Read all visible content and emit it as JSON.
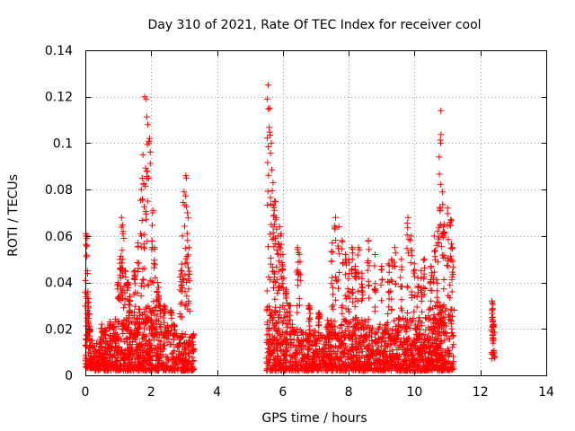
{
  "chart_data": {
    "type": "scatter",
    "title": "Day 310 of 2021, Rate Of TEC Index for receiver cool",
    "xlabel": "GPS time / hours",
    "ylabel": "ROTI / TECUs",
    "xlim": [
      0,
      14
    ],
    "ylim": [
      0,
      0.14
    ],
    "xticks": [
      0,
      2,
      4,
      6,
      8,
      10,
      12,
      14
    ],
    "yticks": [
      0,
      0.02,
      0.04,
      0.06,
      0.08,
      0.1,
      0.12,
      0.14
    ],
    "xtick_labels": [
      "0",
      "2",
      "4",
      "6",
      "8",
      "10",
      "12",
      "14"
    ],
    "ytick_labels": [
      "0",
      "0.02",
      "0.04",
      "0.06",
      "0.08",
      "0.1",
      "0.12",
      "0.14"
    ],
    "grid": true,
    "marker": "+",
    "color": "#ff0000",
    "series": [
      {
        "name": "ROTI",
        "clusters": [
          {
            "x_range": [
              0.0,
              0.25
            ],
            "y_base": [
              0.003,
              0.018
            ],
            "n": 70,
            "peaks": [
              [
                0.02,
                0.061
              ],
              [
                0.05,
                0.059
              ],
              [
                0.08,
                0.036
              ],
              [
                0.1,
                0.029
              ],
              [
                0.12,
                0.02
              ]
            ]
          },
          {
            "x_range": [
              0.25,
              0.9
            ],
            "y_base": [
              0.002,
              0.016
            ],
            "n": 150,
            "peaks": [
              [
                0.5,
                0.022
              ],
              [
                0.6,
                0.02
              ],
              [
                0.75,
                0.023
              ],
              [
                0.85,
                0.022
              ]
            ]
          },
          {
            "x_range": [
              0.9,
              1.4
            ],
            "y_base": [
              0.002,
              0.025
            ],
            "n": 160,
            "peaks": [
              [
                1.0,
                0.04
              ],
              [
                1.05,
                0.05
              ],
              [
                1.1,
                0.068
              ],
              [
                1.15,
                0.062
              ],
              [
                1.2,
                0.045
              ],
              [
                1.3,
                0.04
              ],
              [
                1.35,
                0.034
              ]
            ]
          },
          {
            "x_range": [
              1.4,
              2.3
            ],
            "y_base": [
              0.002,
              0.03
            ],
            "n": 300,
            "peaks": [
              [
                1.5,
                0.045
              ],
              [
                1.6,
                0.057
              ],
              [
                1.7,
                0.08
              ],
              [
                1.75,
                0.095
              ],
              [
                1.8,
                0.12
              ],
              [
                1.85,
                0.119
              ],
              [
                1.9,
                0.108
              ],
              [
                1.95,
                0.102
              ],
              [
                2.05,
                0.071
              ],
              [
                2.1,
                0.055
              ],
              [
                2.2,
                0.04
              ],
              [
                2.25,
                0.03
              ]
            ]
          },
          {
            "x_range": [
              2.3,
              2.75
            ],
            "y_base": [
              0.002,
              0.022
            ],
            "n": 90,
            "peaks": [
              [
                2.4,
                0.03
              ],
              [
                2.6,
                0.028
              ],
              [
                2.7,
                0.021
              ]
            ]
          },
          {
            "x_range": [
              2.75,
              3.3
            ],
            "y_base": [
              0.002,
              0.018
            ],
            "n": 130,
            "peaks": [
              [
                2.9,
                0.045
              ],
              [
                2.95,
                0.06
              ],
              [
                3.0,
                0.079
              ],
              [
                3.05,
                0.086
              ],
              [
                3.1,
                0.07
              ],
              [
                3.15,
                0.055
              ],
              [
                3.25,
                0.016
              ]
            ]
          },
          {
            "x_range": [
              5.5,
              6.3
            ],
            "y_base": [
              0.002,
              0.03
            ],
            "n": 240,
            "peaks": [
              [
                5.55,
                0.125
              ],
              [
                5.6,
                0.115
              ],
              [
                5.65,
                0.1
              ],
              [
                5.7,
                0.083
              ],
              [
                5.75,
                0.075
              ],
              [
                5.8,
                0.068
              ],
              [
                5.85,
                0.06
              ],
              [
                5.9,
                0.064
              ],
              [
                5.95,
                0.061
              ],
              [
                6.0,
                0.052
              ],
              [
                6.1,
                0.037
              ],
              [
                6.2,
                0.03
              ]
            ]
          },
          {
            "x_range": [
              6.3,
              7.3
            ],
            "y_base": [
              0.002,
              0.02
            ],
            "n": 250,
            "peaks": [
              [
                6.45,
                0.055
              ],
              [
                6.5,
                0.052
              ],
              [
                6.8,
                0.03
              ],
              [
                7.1,
                0.027
              ]
            ]
          },
          {
            "x_range": [
              7.3,
              8.5
            ],
            "y_base": [
              0.002,
              0.025
            ],
            "n": 330,
            "peaks": [
              [
                7.5,
                0.057
              ],
              [
                7.6,
                0.068
              ],
              [
                7.7,
                0.064
              ],
              [
                7.8,
                0.058
              ],
              [
                7.9,
                0.052
              ],
              [
                8.0,
                0.05
              ],
              [
                8.1,
                0.055
              ],
              [
                8.2,
                0.047
              ],
              [
                8.3,
                0.055
              ],
              [
                8.4,
                0.044
              ]
            ]
          },
          {
            "x_range": [
              8.5,
              9.5
            ],
            "y_base": [
              0.002,
              0.022
            ],
            "n": 280,
            "peaks": [
              [
                8.6,
                0.058
              ],
              [
                8.8,
                0.052
              ],
              [
                9.0,
                0.047
              ],
              [
                9.2,
                0.048
              ],
              [
                9.3,
                0.05
              ],
              [
                9.4,
                0.055
              ]
            ]
          },
          {
            "x_range": [
              9.5,
              10.4
            ],
            "y_base": [
              0.002,
              0.025
            ],
            "n": 270,
            "peaks": [
              [
                9.6,
                0.05
              ],
              [
                9.8,
                0.068
              ],
              [
                9.9,
                0.06
              ],
              [
                10.0,
                0.048
              ],
              [
                10.1,
                0.042
              ],
              [
                10.2,
                0.045
              ],
              [
                10.3,
                0.05
              ]
            ]
          },
          {
            "x_range": [
              10.4,
              11.2
            ],
            "y_base": [
              0.002,
              0.03
            ],
            "n": 260,
            "peaks": [
              [
                10.5,
                0.047
              ],
              [
                10.6,
                0.06
              ],
              [
                10.7,
                0.062
              ],
              [
                10.75,
                0.094
              ],
              [
                10.8,
                0.114
              ],
              [
                10.85,
                0.079
              ],
              [
                10.9,
                0.065
              ],
              [
                11.0,
                0.072
              ],
              [
                11.1,
                0.067
              ],
              [
                11.15,
                0.055
              ]
            ]
          },
          {
            "x_range": [
              12.3,
              12.45
            ],
            "y_base": [
              0.006,
              0.011
            ],
            "n": 10,
            "peaks": [
              [
                12.35,
                0.032
              ],
              [
                12.38,
                0.025
              ],
              [
                12.4,
                0.022
              ]
            ]
          }
        ]
      }
    ]
  }
}
